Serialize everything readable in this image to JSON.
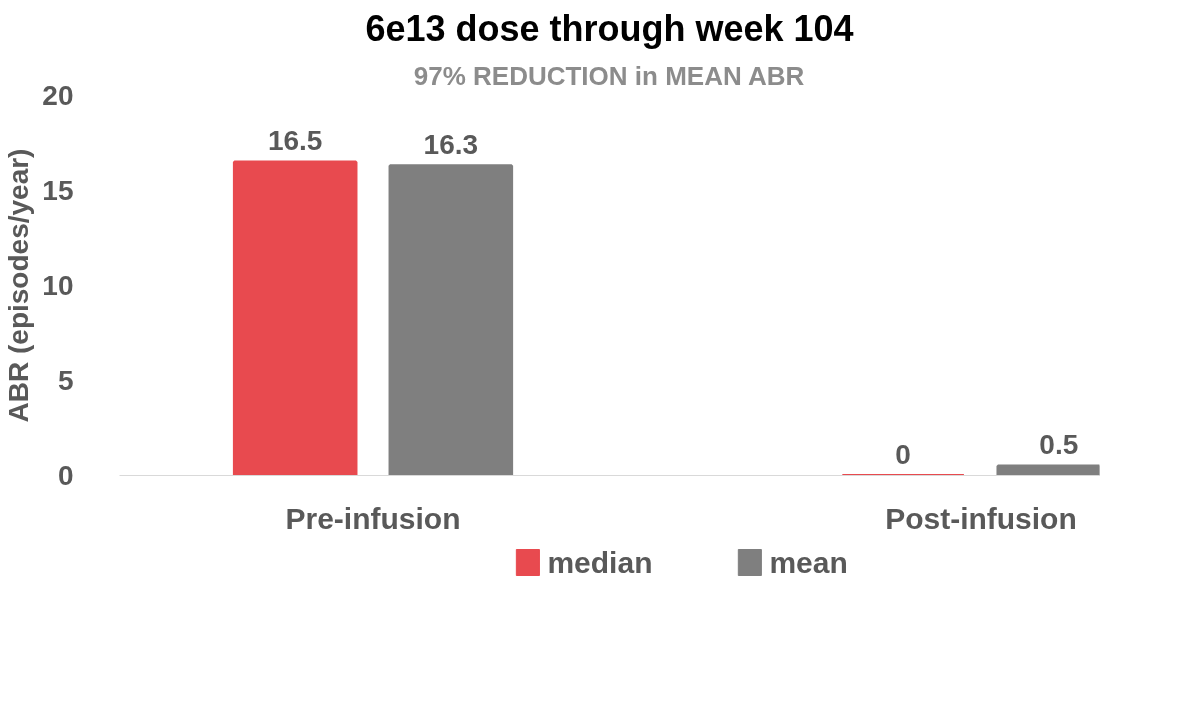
{
  "chart_data": {
    "type": "bar",
    "title": "6e13 dose through week 104",
    "subtitle": "97% REDUCTION in MEAN ABR",
    "ylabel": "ABR (episodes/year)",
    "categories": [
      "Pre-infusion",
      "Post-infusion"
    ],
    "series": [
      {
        "name": "median",
        "color": "#e84a4f",
        "values": [
          16.5,
          0
        ]
      },
      {
        "name": "mean",
        "color": "#7f7f7f",
        "values": [
          16.3,
          0.5
        ]
      }
    ],
    "ylim": [
      0,
      20
    ],
    "yticks": [
      0,
      5,
      10,
      15,
      20
    ],
    "grid": false,
    "legend": "bottom",
    "data_labels": true
  }
}
